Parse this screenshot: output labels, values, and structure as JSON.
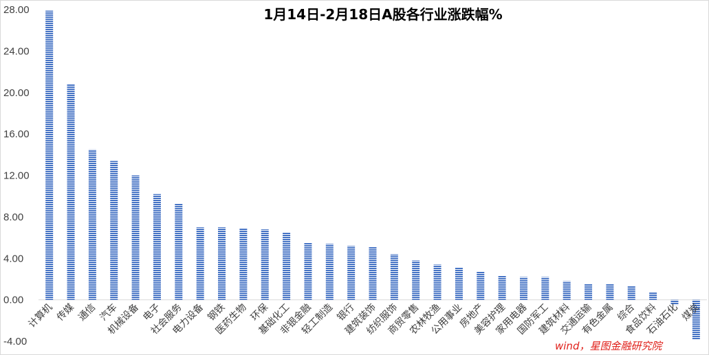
{
  "chart_data": {
    "type": "bar",
    "title": "1月14日-2月18日A股各行业涨跌幅%",
    "xlabel": "",
    "ylabel": "",
    "ylim": [
      -4,
      28
    ],
    "yticks": [
      "-4.00",
      "0.00",
      "4.00",
      "8.00",
      "12.00",
      "16.00",
      "20.00",
      "24.00",
      "28.00"
    ],
    "grid": false,
    "legend": "none",
    "bar_color": "#4472c4",
    "bar_pattern": "horizontal-stripes",
    "categories": [
      "计算机",
      "传媒",
      "通信",
      "汽车",
      "机械设备",
      "电子",
      "社会服务",
      "电力设备",
      "钢铁",
      "医药生物",
      "环保",
      "基础化工",
      "非银金融",
      "轻工制造",
      "银行",
      "建筑装饰",
      "纺织服饰",
      "商贸零售",
      "农林牧渔",
      "公用事业",
      "房地产",
      "美容护理",
      "家用电器",
      "国防军工",
      "建筑材料",
      "交通运输",
      "有色金属",
      "综合",
      "食品饮料",
      "石油石化",
      "煤炭"
    ],
    "values": [
      27.9,
      20.8,
      14.5,
      13.4,
      12.0,
      10.2,
      9.3,
      7.0,
      7.0,
      6.9,
      6.8,
      6.5,
      5.5,
      5.4,
      5.2,
      5.1,
      4.4,
      3.8,
      3.4,
      3.1,
      2.7,
      2.3,
      2.2,
      2.2,
      1.8,
      1.5,
      1.5,
      1.3,
      0.7,
      -0.5,
      -3.8
    ]
  },
  "source_text": "wind，星图金融研究院"
}
